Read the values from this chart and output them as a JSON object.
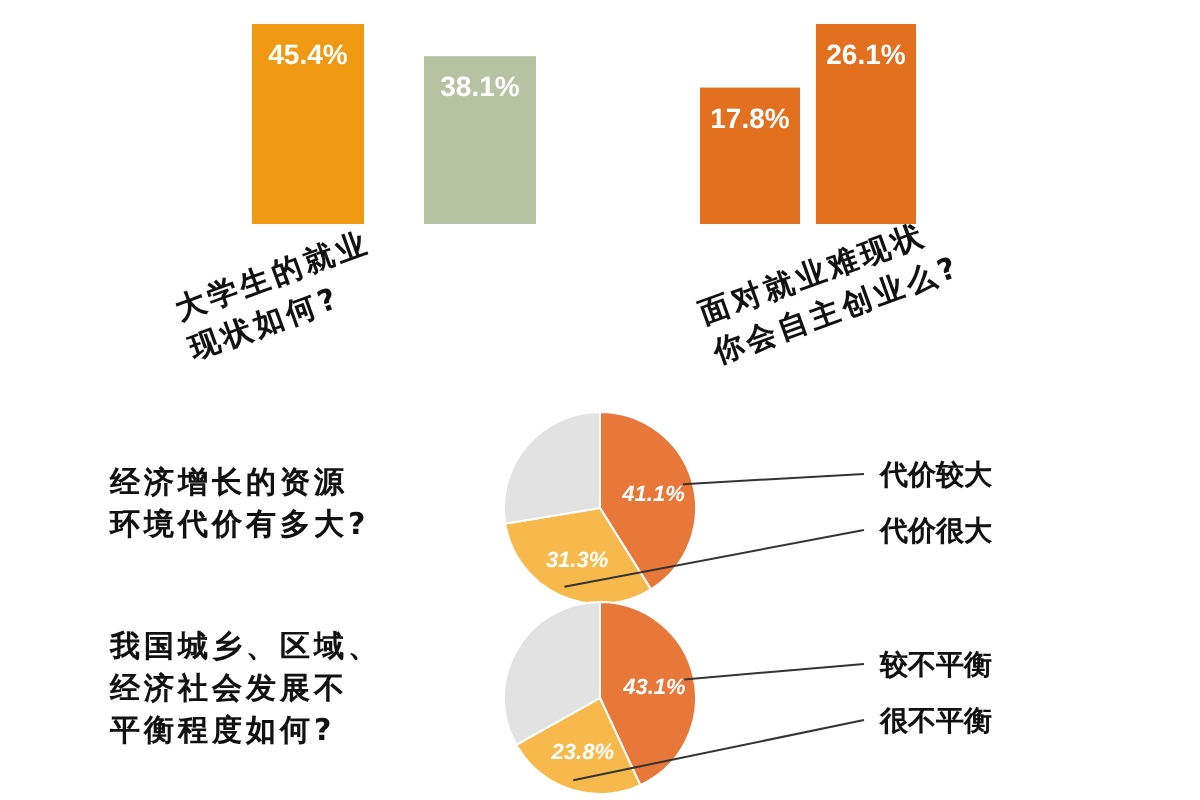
{
  "chart_data": [
    {
      "type": "bar",
      "title": "大学生的就业现状如何?",
      "categories": [
        null,
        null
      ],
      "values": [
        45.4,
        38.1
      ],
      "colors": [
        "#f09a14",
        "#b7c2a2"
      ],
      "value_labels": [
        "45.4%",
        "38.1%"
      ]
    },
    {
      "type": "bar",
      "title": "面对就业难现状你会自主创业么?",
      "categories": [
        null,
        null
      ],
      "values": [
        17.8,
        26.1
      ],
      "colors": [
        "#e2701f",
        "#e2701f"
      ],
      "value_labels": [
        "17.8%",
        "26.1%"
      ]
    },
    {
      "type": "pie",
      "title": "经济增长的资源环境代价有多大?",
      "categories": [
        "代价较大",
        "代价很大",
        null
      ],
      "values": [
        41.1,
        31.3,
        27.6
      ],
      "colors": [
        "#e8783a",
        "#f7b94c",
        "#e2e2e2"
      ],
      "value_labels": [
        "41.1%",
        "31.3%",
        null
      ]
    },
    {
      "type": "pie",
      "title": "我国城乡、区域、经济社会发展不平衡程度如何?",
      "categories": [
        "较不平衡",
        "很不平衡",
        null
      ],
      "values": [
        43.1,
        23.8,
        33.1
      ],
      "colors": [
        "#e8783a",
        "#f7b94c",
        "#e2e2e2"
      ],
      "value_labels": [
        "43.1%",
        "23.8%",
        null
      ]
    }
  ]
}
